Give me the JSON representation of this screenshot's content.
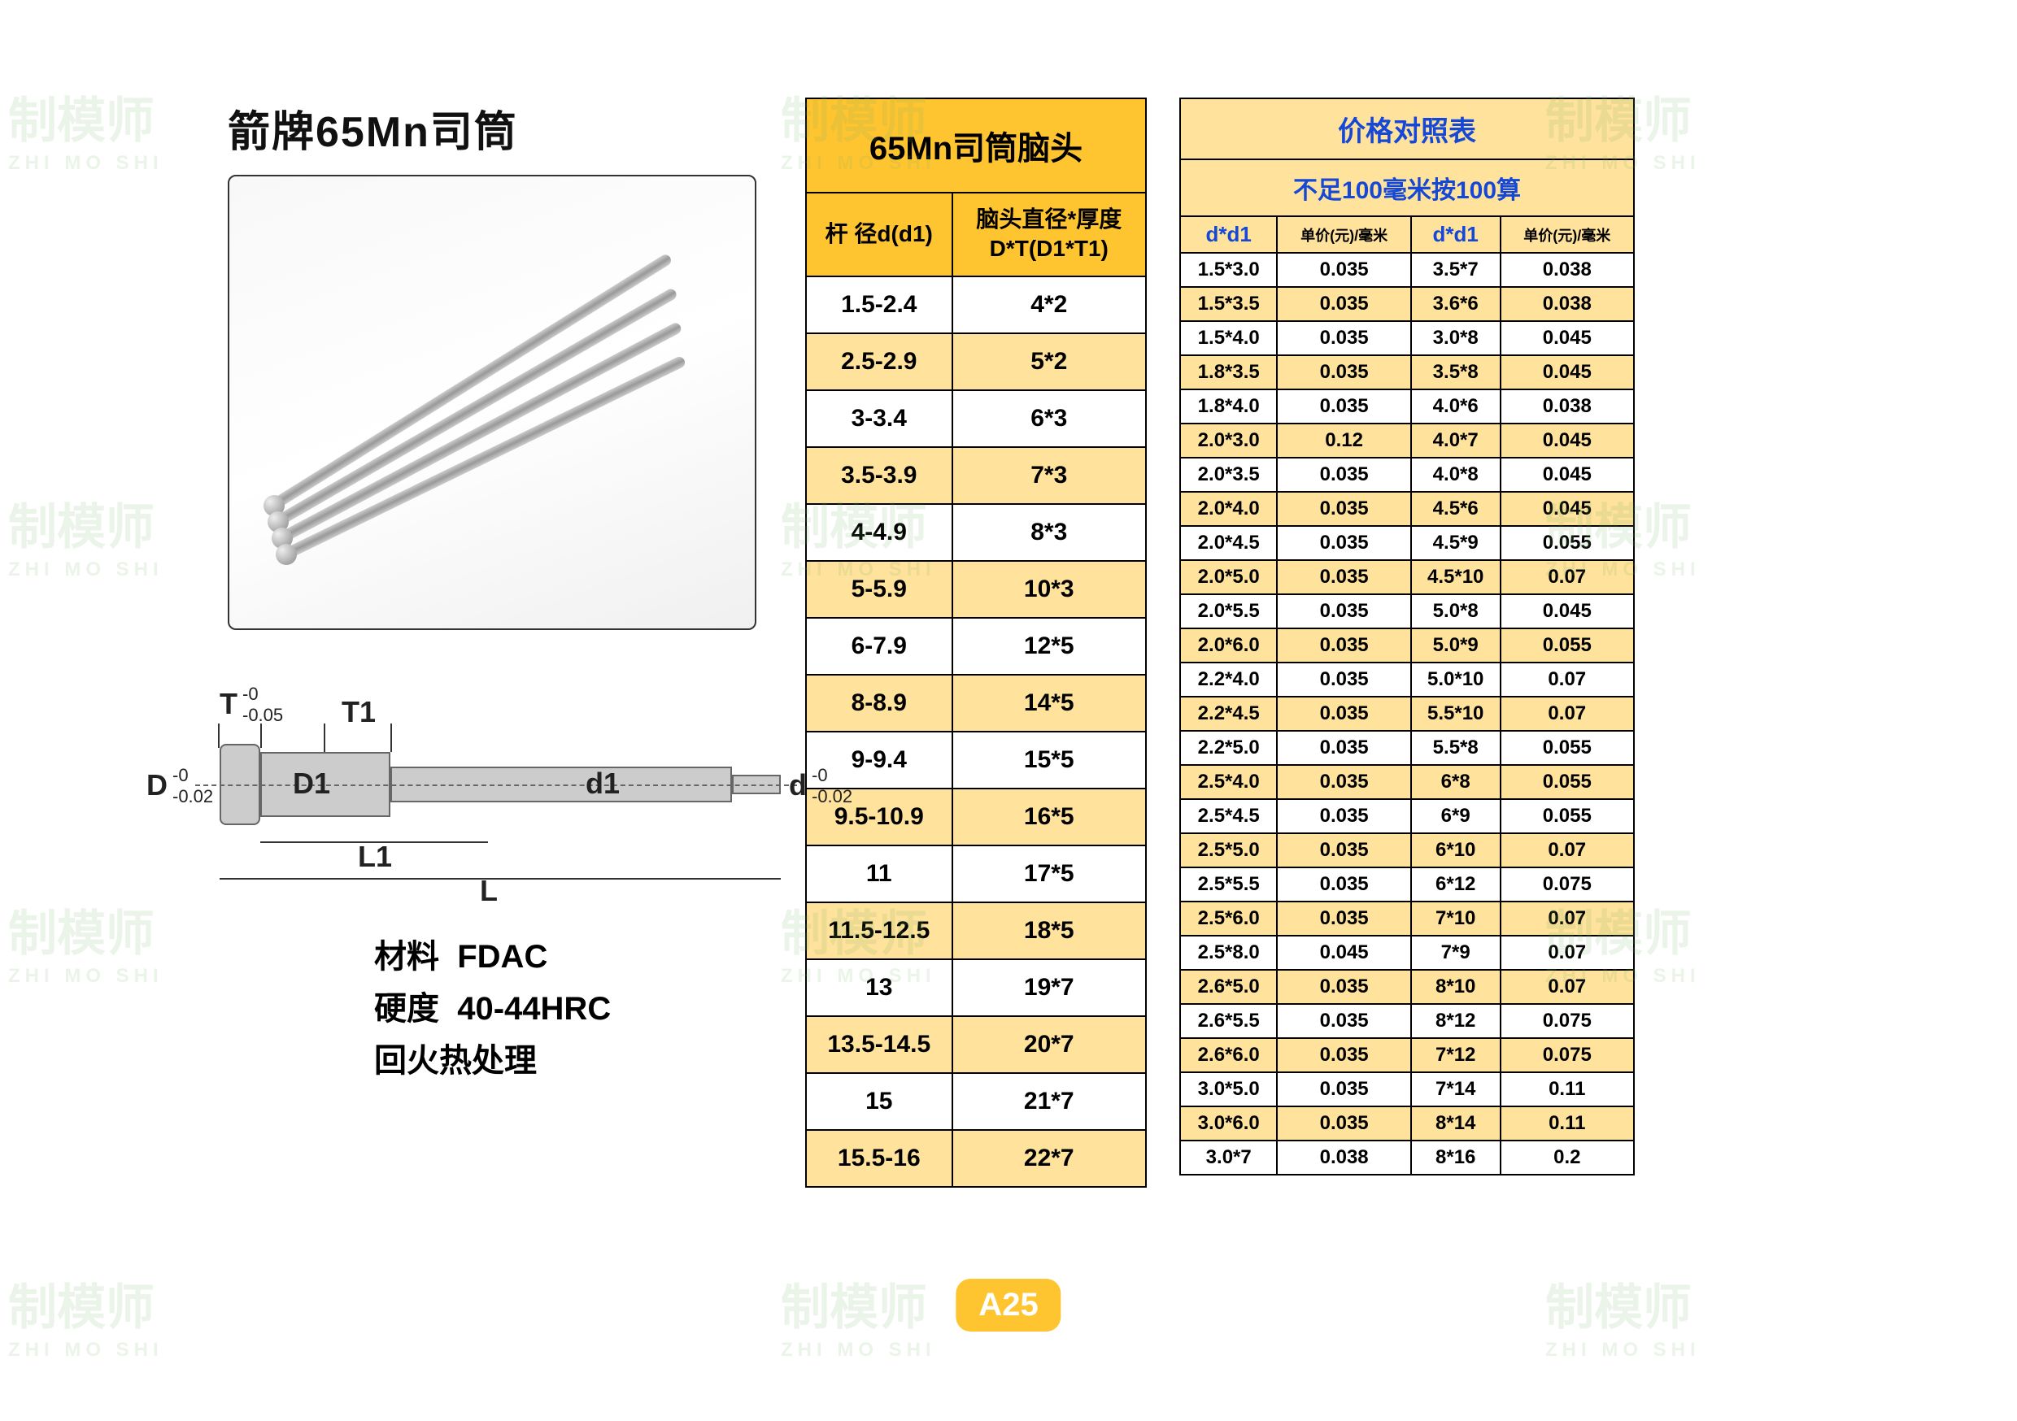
{
  "title": "箭牌65Mn司筒",
  "diagram": {
    "T": "T",
    "T_tol": "-0\n-0.05",
    "T1": "T1",
    "D": "D",
    "D_tol": "-0\n-0.02",
    "D1": "D1",
    "d1": "d1",
    "d": "d",
    "d_tol": "-0\n-0.02",
    "L1": "L1",
    "L": "L"
  },
  "specs": {
    "material_label": "材料",
    "material_value": "FDAC",
    "hardness_label": "硬度",
    "hardness_value": "40-44HRC",
    "treatment": "回火热处理"
  },
  "table1": {
    "title": "65Mn司筒脑头",
    "col1": "杆 径d(d1)",
    "col2": "脑头直径*厚度\nD*T(D1*T1)",
    "rows": [
      {
        "c1": "1.5-2.4",
        "c2": "4*2"
      },
      {
        "c1": "2.5-2.9",
        "c2": "5*2"
      },
      {
        "c1": "3-3.4",
        "c2": "6*3"
      },
      {
        "c1": "3.5-3.9",
        "c2": "7*3"
      },
      {
        "c1": "4-4.9",
        "c2": "8*3"
      },
      {
        "c1": "5-5.9",
        "c2": "10*3"
      },
      {
        "c1": "6-7.9",
        "c2": "12*5"
      },
      {
        "c1": "8-8.9",
        "c2": "14*5"
      },
      {
        "c1": "9-9.4",
        "c2": "15*5"
      },
      {
        "c1": "9.5-10.9",
        "c2": "16*5"
      },
      {
        "c1": "11",
        "c2": "17*5"
      },
      {
        "c1": "11.5-12.5",
        "c2": "18*5"
      },
      {
        "c1": "13",
        "c2": "19*7"
      },
      {
        "c1": "13.5-14.5",
        "c2": "20*7"
      },
      {
        "c1": "15",
        "c2": "21*7"
      },
      {
        "c1": "15.5-16",
        "c2": "22*7"
      }
    ]
  },
  "table2": {
    "title": "价格对照表",
    "subtitle": "不足100毫米按100算",
    "col_dd1": "d*d1",
    "col_price": "单价(元)/毫米",
    "rows": [
      {
        "a": "1.5*3.0",
        "ap": "0.035",
        "b": "3.5*7",
        "bp": "0.038"
      },
      {
        "a": "1.5*3.5",
        "ap": "0.035",
        "b": "3.6*6",
        "bp": "0.038"
      },
      {
        "a": "1.5*4.0",
        "ap": "0.035",
        "b": "3.0*8",
        "bp": "0.045"
      },
      {
        "a": "1.8*3.5",
        "ap": "0.035",
        "b": "3.5*8",
        "bp": "0.045"
      },
      {
        "a": "1.8*4.0",
        "ap": "0.035",
        "b": "4.0*6",
        "bp": "0.038"
      },
      {
        "a": "2.0*3.0",
        "ap": "0.12",
        "b": "4.0*7",
        "bp": "0.045"
      },
      {
        "a": "2.0*3.5",
        "ap": "0.035",
        "b": "4.0*8",
        "bp": "0.045"
      },
      {
        "a": "2.0*4.0",
        "ap": "0.035",
        "b": "4.5*6",
        "bp": "0.045"
      },
      {
        "a": "2.0*4.5",
        "ap": "0.035",
        "b": "4.5*9",
        "bp": "0.055"
      },
      {
        "a": "2.0*5.0",
        "ap": "0.035",
        "b": "4.5*10",
        "bp": "0.07"
      },
      {
        "a": "2.0*5.5",
        "ap": "0.035",
        "b": "5.0*8",
        "bp": "0.045"
      },
      {
        "a": "2.0*6.0",
        "ap": "0.035",
        "b": "5.0*9",
        "bp": "0.055"
      },
      {
        "a": "2.2*4.0",
        "ap": "0.035",
        "b": "5.0*10",
        "bp": "0.07"
      },
      {
        "a": "2.2*4.5",
        "ap": "0.035",
        "b": "5.5*10",
        "bp": "0.07"
      },
      {
        "a": "2.2*5.0",
        "ap": "0.035",
        "b": "5.5*8",
        "bp": "0.055"
      },
      {
        "a": "2.5*4.0",
        "ap": "0.035",
        "b": "6*8",
        "bp": "0.055"
      },
      {
        "a": "2.5*4.5",
        "ap": "0.035",
        "b": "6*9",
        "bp": "0.055"
      },
      {
        "a": "2.5*5.0",
        "ap": "0.035",
        "b": "6*10",
        "bp": "0.07"
      },
      {
        "a": "2.5*5.5",
        "ap": "0.035",
        "b": "6*12",
        "bp": "0.075"
      },
      {
        "a": "2.5*6.0",
        "ap": "0.035",
        "b": "7*10",
        "bp": "0.07"
      },
      {
        "a": "2.5*8.0",
        "ap": "0.045",
        "b": "7*9",
        "bp": "0.07"
      },
      {
        "a": "2.6*5.0",
        "ap": "0.035",
        "b": "8*10",
        "bp": "0.07"
      },
      {
        "a": "2.6*5.5",
        "ap": "0.035",
        "b": "8*12",
        "bp": "0.075"
      },
      {
        "a": "2.6*6.0",
        "ap": "0.035",
        "b": "7*12",
        "bp": "0.075"
      },
      {
        "a": "3.0*5.0",
        "ap": "0.035",
        "b": "7*14",
        "bp": "0.11"
      },
      {
        "a": "3.0*6.0",
        "ap": "0.035",
        "b": "8*14",
        "bp": "0.11"
      },
      {
        "a": "3.0*7",
        "ap": "0.038",
        "b": "8*16",
        "bp": "0.2"
      }
    ]
  },
  "page_number": "A25",
  "watermark_text": "制模师",
  "watermark_sub": "ZHI MO SHI",
  "colors": {
    "header_bg": "#ffc530",
    "alt_row_bg": "#ffe29b",
    "blue_text": "#1548d6",
    "border": "#000000",
    "badge_bg": "#ffc530",
    "badge_fg": "#ffffff"
  }
}
